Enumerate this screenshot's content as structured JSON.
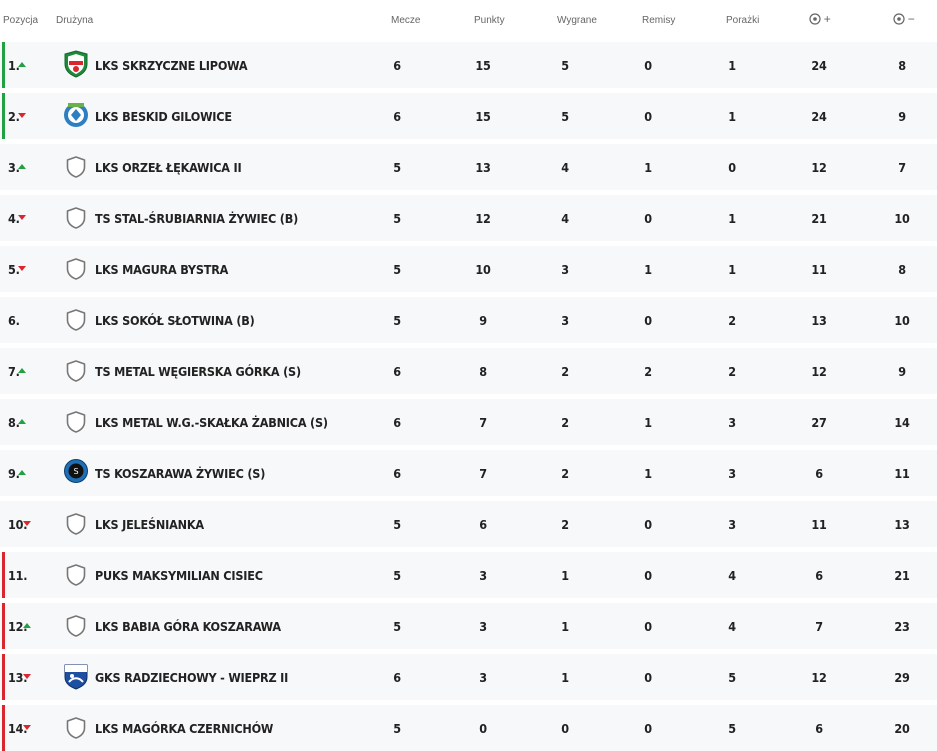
{
  "headers": {
    "position": "Pozycja",
    "team": "Drużyna",
    "played": "Mecze",
    "points": "Punkty",
    "wins": "Wygrane",
    "draws": "Remisy",
    "losses": "Porażki",
    "goals_for": "+",
    "goals_against": "−"
  },
  "colors": {
    "promotion": "#21a142",
    "relegation": "#d9262f",
    "up_arrow": "#21a142",
    "down_arrow": "#d9262f"
  },
  "rows": [
    {
      "pos": "1.",
      "trend": "up",
      "zone": "promotion",
      "crest": "club-crest-green",
      "team": "LKS SKRZYCZNE LIPOWA",
      "played": "6",
      "points": "15",
      "wins": "5",
      "draws": "0",
      "losses": "1",
      "gf": "24",
      "ga": "8"
    },
    {
      "pos": "2.",
      "trend": "down",
      "zone": "promotion",
      "crest": "club-crest-blue",
      "team": "LKS BESKID GILOWICE",
      "played": "6",
      "points": "15",
      "wins": "5",
      "draws": "0",
      "losses": "1",
      "gf": "24",
      "ga": "9"
    },
    {
      "pos": "3.",
      "trend": "up",
      "zone": "",
      "crest": "default-shield",
      "team": "LKS ORZEŁ ŁĘKAWICA II",
      "played": "5",
      "points": "13",
      "wins": "4",
      "draws": "1",
      "losses": "0",
      "gf": "12",
      "ga": "7"
    },
    {
      "pos": "4.",
      "trend": "down",
      "zone": "",
      "crest": "default-shield",
      "team": "TS STAL-ŚRUBIARNIA ŻYWIEC (B)",
      "played": "5",
      "points": "12",
      "wins": "4",
      "draws": "0",
      "losses": "1",
      "gf": "21",
      "ga": "10"
    },
    {
      "pos": "5.",
      "trend": "down",
      "zone": "",
      "crest": "default-shield",
      "team": "LKS MAGURA BYSTRA",
      "played": "5",
      "points": "10",
      "wins": "3",
      "draws": "1",
      "losses": "1",
      "gf": "11",
      "ga": "8"
    },
    {
      "pos": "6.",
      "trend": "none",
      "zone": "",
      "crest": "default-shield",
      "team": "LKS SOKÓŁ SŁOTWINA (B)",
      "played": "5",
      "points": "9",
      "wins": "3",
      "draws": "0",
      "losses": "2",
      "gf": "13",
      "ga": "10"
    },
    {
      "pos": "7.",
      "trend": "up",
      "zone": "",
      "crest": "default-shield",
      "team": "TS METAL WĘGIERSKA GÓRKA (S)",
      "played": "6",
      "points": "8",
      "wins": "2",
      "draws": "2",
      "losses": "2",
      "gf": "12",
      "ga": "9"
    },
    {
      "pos": "8.",
      "trend": "up",
      "zone": "",
      "crest": "default-shield",
      "team": "LKS METAL W.G.-SKAŁKA ŻABNICA (S)",
      "played": "6",
      "points": "7",
      "wins": "2",
      "draws": "1",
      "losses": "3",
      "gf": "27",
      "ga": "14"
    },
    {
      "pos": "9.",
      "trend": "up",
      "zone": "",
      "crest": "club-crest-round",
      "team": "TS KOSZARAWA ŻYWIEC (S)",
      "played": "6",
      "points": "7",
      "wins": "2",
      "draws": "1",
      "losses": "3",
      "gf": "6",
      "ga": "11"
    },
    {
      "pos": "10.",
      "trend": "down",
      "zone": "",
      "crest": "default-shield",
      "team": "LKS JELEŚNIANKA",
      "played": "5",
      "points": "6",
      "wins": "2",
      "draws": "0",
      "losses": "3",
      "gf": "11",
      "ga": "13"
    },
    {
      "pos": "11.",
      "trend": "none",
      "zone": "relegation",
      "crest": "default-shield",
      "team": "PUKS MAKSYMILIAN CISIEC",
      "played": "5",
      "points": "3",
      "wins": "1",
      "draws": "0",
      "losses": "4",
      "gf": "6",
      "ga": "21"
    },
    {
      "pos": "12.",
      "trend": "up",
      "zone": "relegation",
      "crest": "default-shield",
      "team": "LKS BABIA GÓRA KOSZARAWA",
      "played": "5",
      "points": "3",
      "wins": "1",
      "draws": "0",
      "losses": "4",
      "gf": "7",
      "ga": "23"
    },
    {
      "pos": "13.",
      "trend": "down",
      "zone": "relegation",
      "crest": "club-crest-blue-white",
      "team": "GKS RADZIECHOWY - WIEPRZ II",
      "played": "6",
      "points": "3",
      "wins": "1",
      "draws": "0",
      "losses": "5",
      "gf": "12",
      "ga": "29"
    },
    {
      "pos": "14.",
      "trend": "down",
      "zone": "relegation",
      "crest": "default-shield",
      "team": "LKS MAGÓRKA CZERNICHÓW",
      "played": "5",
      "points": "0",
      "wins": "0",
      "draws": "0",
      "losses": "5",
      "gf": "6",
      "ga": "20"
    }
  ]
}
